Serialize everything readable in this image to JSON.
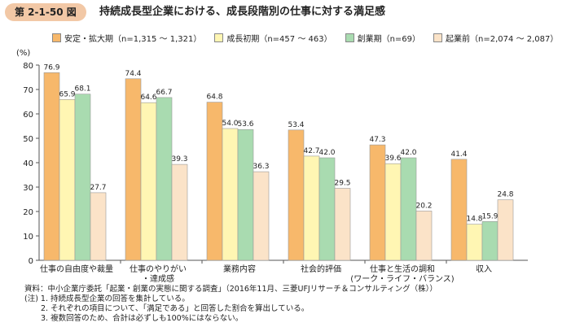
{
  "header": {
    "figure_number": "第 2-1-50 図",
    "title": "持続成長型企業における、成長段階別の仕事に対する満足感"
  },
  "chart_data": {
    "type": "bar",
    "title": "持続成長型企業における、成長段階別の仕事に対する満足感",
    "ylabel": "(%)",
    "ylim": [
      0,
      80
    ],
    "yticks": [
      0,
      10,
      20,
      30,
      40,
      50,
      60,
      70,
      80
    ],
    "grid": false,
    "legend_position": "top",
    "categories": [
      [
        "仕事の自由度や裁量"
      ],
      [
        "仕事のやりがい",
        "・達成感"
      ],
      [
        "業務内容"
      ],
      [
        "社会的評価"
      ],
      [
        "仕事と生活の調和",
        "(ワーク・ライフ・バランス)"
      ],
      [
        "収入"
      ]
    ],
    "series": [
      {
        "name": "安定・拡大期（n=1,315 ～ 1,321）",
        "color": "#f7b86b",
        "values": [
          76.9,
          74.4,
          64.8,
          53.4,
          47.3,
          41.4
        ]
      },
      {
        "name": "成長初期（n=457 ～ 463）",
        "color": "#fff6b3",
        "values": [
          65.9,
          64.6,
          54.0,
          42.7,
          39.6,
          14.8
        ]
      },
      {
        "name": "創業期（n=69）",
        "color": "#a9dbb0",
        "values": [
          68.1,
          66.7,
          53.6,
          42.0,
          42.0,
          15.9
        ]
      },
      {
        "name": "起業前（n=2,074 ～ 2,087）",
        "color": "#fbe3c8",
        "values": [
          27.7,
          39.3,
          36.3,
          29.5,
          20.2,
          24.8
        ]
      }
    ]
  },
  "notes": {
    "source": "資料：中小企業庁委託「起業・創業の実態に関する調査」（2016年11月、三菱UFJリサーチ＆コンサルティング（株））",
    "note1": "(注) 1. 持続成長型企業の回答を集計している。",
    "note2": "2. それぞれの項目について、「満足である」と回答した割合を算出している。",
    "note3": "3. 複数回答のため、合計は必ずしも100%にはならない。"
  }
}
